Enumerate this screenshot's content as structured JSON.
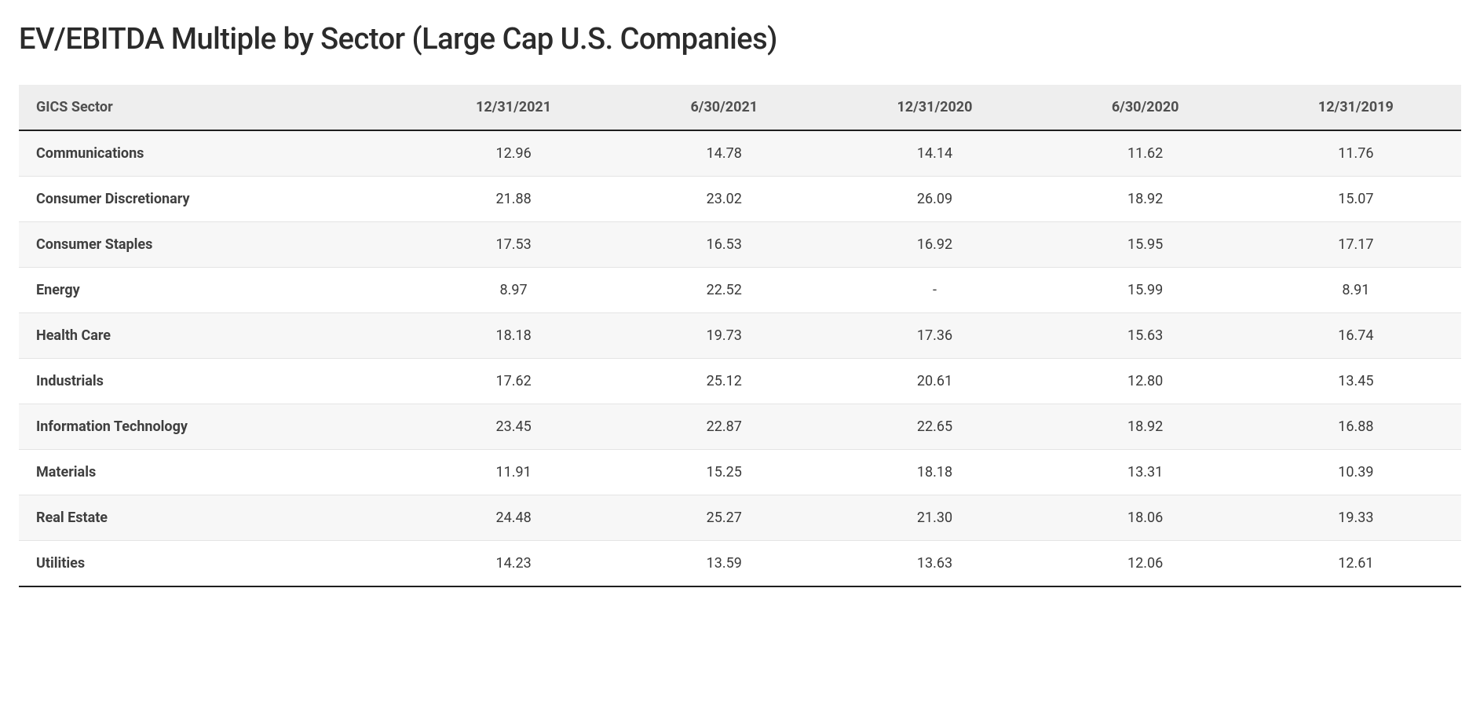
{
  "title": "EV/EBITDA Multiple by Sector (Large Cap U.S. Companies)",
  "table": {
    "type": "table",
    "header_bg": "#eeeeee",
    "stripe_bg": "#f7f7f7",
    "border_color": "#e4e4e4",
    "heavy_border_color": "#1f1f1f",
    "header_fontsize": 18,
    "cell_fontsize": 18,
    "title_fontsize": 38,
    "text_color": "#3a3a3a",
    "label_col_width_pct": 27,
    "value_col_width_pct": 14.6,
    "columns": [
      {
        "key": "sector",
        "label": "GICS Sector",
        "align": "left"
      },
      {
        "key": "d1",
        "label": "12/31/2021",
        "align": "center"
      },
      {
        "key": "d2",
        "label": "6/30/2021",
        "align": "center"
      },
      {
        "key": "d3",
        "label": "12/31/2020",
        "align": "center"
      },
      {
        "key": "d4",
        "label": "6/30/2020",
        "align": "center"
      },
      {
        "key": "d5",
        "label": "12/31/2019",
        "align": "center"
      }
    ],
    "rows": [
      {
        "sector": "Communications",
        "d1": "12.96",
        "d2": "14.78",
        "d3": "14.14",
        "d4": "11.62",
        "d5": "11.76"
      },
      {
        "sector": "Consumer Discretionary",
        "d1": "21.88",
        "d2": "23.02",
        "d3": "26.09",
        "d4": "18.92",
        "d5": "15.07"
      },
      {
        "sector": "Consumer Staples",
        "d1": "17.53",
        "d2": "16.53",
        "d3": "16.92",
        "d4": "15.95",
        "d5": "17.17"
      },
      {
        "sector": "Energy",
        "d1": "8.97",
        "d2": "22.52",
        "d3": "-",
        "d4": "15.99",
        "d5": "8.91"
      },
      {
        "sector": "Health Care",
        "d1": "18.18",
        "d2": "19.73",
        "d3": "17.36",
        "d4": "15.63",
        "d5": "16.74"
      },
      {
        "sector": "Industrials",
        "d1": "17.62",
        "d2": "25.12",
        "d3": "20.61",
        "d4": "12.80",
        "d5": "13.45"
      },
      {
        "sector": "Information Technology",
        "d1": "23.45",
        "d2": "22.87",
        "d3": "22.65",
        "d4": "18.92",
        "d5": "16.88"
      },
      {
        "sector": "Materials",
        "d1": "11.91",
        "d2": "15.25",
        "d3": "18.18",
        "d4": "13.31",
        "d5": "10.39"
      },
      {
        "sector": "Real Estate",
        "d1": "24.48",
        "d2": "25.27",
        "d3": "21.30",
        "d4": "18.06",
        "d5": "19.33"
      },
      {
        "sector": "Utilities",
        "d1": "14.23",
        "d2": "13.59",
        "d3": "13.63",
        "d4": "12.06",
        "d5": "12.61"
      }
    ]
  }
}
